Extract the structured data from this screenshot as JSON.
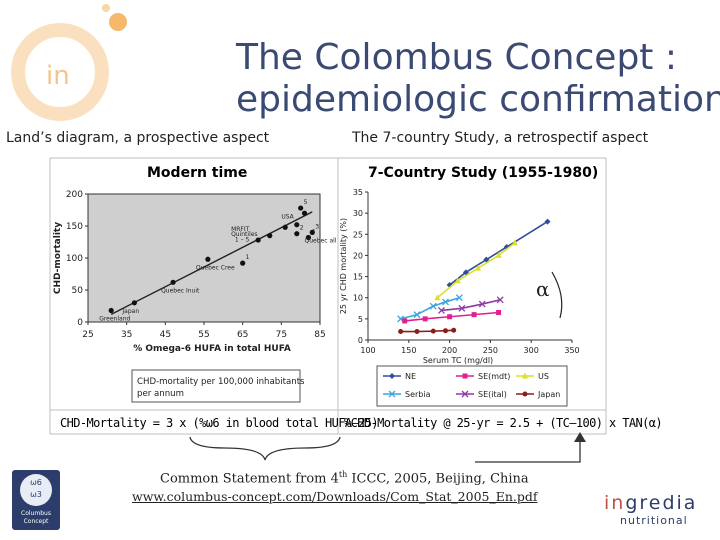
{
  "slide": {
    "title_line1": "The Colombus Concept :",
    "title_line2": "epidemiologic confirmation",
    "subtitle_left": "Land’s diagram, a prospective aspect",
    "subtitle_right": "The 7-country Study, a retrospectif aspect",
    "colors": {
      "title": "#3b4a73",
      "logo_orange": "#f6b86b",
      "logo_light": "#fbd9ad",
      "accent_red": "#c0504d"
    }
  },
  "left_panel": {
    "title": "Modern time",
    "box_text_line1": "CHD-mortality per 100,000 inhabitants",
    "box_text_line2": "per annum",
    "formula": "CHD-Mortality = 3 x (%ω6 in blood total HUFA–25)"
  },
  "right_panel": {
    "title": "7-Country Study (1955-1980)",
    "alpha_symbol": "α",
    "formula": "%CHD-Mortality @ 25-yr = 2.5 + (TC–100) x TAN(α)"
  },
  "footer": {
    "statement_prefix": "Common Statement from 4",
    "statement_sup": "th",
    "statement_suffix": " ICCC, 2005, Beijing, China",
    "url": "www.columbus-concept.com/Downloads/Com_Stat_2005_En.pdf",
    "left_logo_line1": "ω6",
    "left_logo_line2": "ω3",
    "left_logo_caption1": "Columbus",
    "left_logo_caption2": "Concept",
    "brand_name_part1": "in",
    "brand_name_part2": "gredia",
    "brand_sub": "nutritional",
    "corner_logo_text": "in"
  },
  "chart_data": [
    {
      "type": "scatter",
      "title": "Modern time",
      "xlabel": "% Omega-6 HUFA in total HUFA",
      "ylabel": "CHD-mortality",
      "xlim": [
        25,
        85
      ],
      "ylim": [
        0,
        200
      ],
      "xticks": [
        "25",
        "35",
        "45",
        "55",
        "65",
        "75",
        "85"
      ],
      "yticks": [
        "0",
        "50",
        "100",
        "150",
        "200"
      ],
      "grid": false,
      "points": [
        {
          "x": 31,
          "y": 18,
          "label": "Greenland"
        },
        {
          "x": 37,
          "y": 30,
          "label": "Japan"
        },
        {
          "x": 47,
          "y": 62,
          "label": "Quebec Inuit"
        },
        {
          "x": 56,
          "y": 98,
          "label": "Quebec Cree"
        },
        {
          "x": 65,
          "y": 92,
          "label": "1"
        },
        {
          "x": 69,
          "y": 128,
          "label": ""
        },
        {
          "x": 72,
          "y": 135,
          "label": ""
        },
        {
          "x": 76,
          "y": 148,
          "label": ""
        },
        {
          "x": 79,
          "y": 152,
          "label": ""
        },
        {
          "x": 80,
          "y": 178,
          "label": "5"
        },
        {
          "x": 81,
          "y": 170,
          "label": ""
        },
        {
          "x": 79,
          "y": 138,
          "label": "2"
        },
        {
          "x": 82,
          "y": 132,
          "label": "4"
        },
        {
          "x": 83,
          "y": 140,
          "label": "3"
        }
      ],
      "trend": {
        "x": [
          31,
          83
        ],
        "y": [
          12,
          172
        ]
      },
      "annotations": [
        {
          "text": "USA",
          "x": 75,
          "y": 162
        },
        {
          "text": "MRFIT",
          "x": 62,
          "y": 142
        },
        {
          "text": "Quintiles",
          "x": 62,
          "y": 134
        },
        {
          "text": "1 – 5",
          "x": 63,
          "y": 126
        },
        {
          "text": "Quebec all",
          "x": 81,
          "y": 124
        }
      ]
    },
    {
      "type": "line",
      "title": "7-Country Study (1955-1980)",
      "xlabel": "Serum TC (mg/dl)",
      "ylabel": "25 yr CHD mortality (%)",
      "xlim": [
        100,
        350
      ],
      "ylim": [
        0,
        35
      ],
      "xticks": [
        "100",
        "150",
        "200",
        "250",
        "300",
        "350"
      ],
      "yticks": [
        "0",
        "5",
        "10",
        "15",
        "20",
        "25",
        "30",
        "35"
      ],
      "legend_position": "bottom",
      "series": [
        {
          "name": "NE",
          "color": "#2e4d9c",
          "marker": "diamond",
          "x": [
            200,
            220,
            245,
            270,
            320
          ],
          "y": [
            13,
            16,
            19,
            22,
            28
          ]
        },
        {
          "name": "US",
          "color": "#dede2a",
          "marker": "triangle",
          "x": [
            185,
            210,
            235,
            260,
            280
          ],
          "y": [
            10,
            14,
            17,
            20,
            23
          ]
        },
        {
          "name": "Serbia",
          "color": "#3aa6dc",
          "marker": "x",
          "x": [
            140,
            160,
            180,
            195,
            212
          ],
          "y": [
            5,
            6,
            8,
            9,
            10
          ]
        },
        {
          "name": "SE(mdt)",
          "color": "#e0208e",
          "marker": "square",
          "x": [
            145,
            170,
            200,
            230,
            260
          ],
          "y": [
            4.5,
            5,
            5.5,
            6,
            6.5
          ]
        },
        {
          "name": "SE(ital)",
          "color": "#8e3aa8",
          "marker": "x",
          "x": [
            190,
            215,
            240,
            262
          ],
          "y": [
            7,
            7.5,
            8.5,
            9.5
          ]
        },
        {
          "name": "Japan",
          "color": "#8a1c1c",
          "marker": "circle",
          "x": [
            140,
            160,
            180,
            195,
            205
          ],
          "y": [
            2,
            2,
            2.1,
            2.2,
            2.3
          ]
        }
      ]
    }
  ]
}
